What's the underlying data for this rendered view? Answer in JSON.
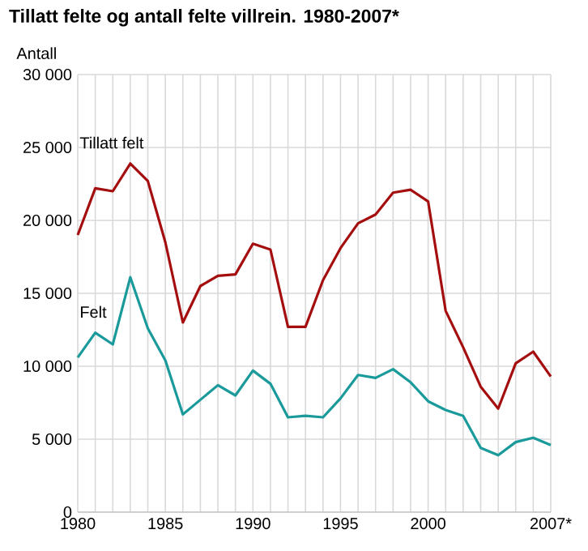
{
  "chart_data": {
    "type": "line",
    "title": "Tillatt felte og antall felte villrein. 1980-2007*",
    "ylabel": "Antall",
    "x": [
      1980,
      1981,
      1982,
      1983,
      1984,
      1985,
      1986,
      1987,
      1988,
      1989,
      1990,
      1991,
      1992,
      1993,
      1994,
      1995,
      1996,
      1997,
      1998,
      1999,
      2000,
      2001,
      2002,
      2003,
      2004,
      2005,
      2006,
      2007
    ],
    "series": [
      {
        "name": "Tillatt felt",
        "color": "#a50e0e",
        "values": [
          19000,
          22200,
          22000,
          23900,
          22700,
          18500,
          13000,
          15500,
          16200,
          16300,
          18400,
          18000,
          12700,
          12700,
          15900,
          18100,
          19800,
          20400,
          21900,
          22100,
          21300,
          13800,
          11300,
          8600,
          7100,
          10200,
          11000,
          9300
        ]
      },
      {
        "name": "Felt",
        "color": "#1a9a9a",
        "values": [
          10600,
          12300,
          11500,
          16100,
          12600,
          10400,
          6700,
          7700,
          8700,
          8000,
          9700,
          8800,
          6500,
          6600,
          6500,
          7800,
          9400,
          9200,
          9800,
          8900,
          7600,
          7000,
          6600,
          4400,
          3900,
          4800,
          5100,
          4600
        ]
      }
    ],
    "xlim": [
      1980,
      2007
    ],
    "ylim": [
      0,
      30000
    ],
    "xticks": [
      1980,
      {
        "value": 1981,
        "label": null
      },
      {
        "value": 1982,
        "label": null
      },
      {
        "value": 1983,
        "label": null
      },
      {
        "value": 1984,
        "label": null
      },
      1985,
      {
        "value": 1986,
        "label": null
      },
      {
        "value": 1987,
        "label": null
      },
      {
        "value": 1988,
        "label": null
      },
      {
        "value": 1989,
        "label": null
      },
      1990,
      {
        "value": 1991,
        "label": null
      },
      {
        "value": 1992,
        "label": null
      },
      {
        "value": 1993,
        "label": null
      },
      {
        "value": 1994,
        "label": null
      },
      1995,
      {
        "value": 1996,
        "label": null
      },
      {
        "value": 1997,
        "label": null
      },
      {
        "value": 1998,
        "label": null
      },
      {
        "value": 1999,
        "label": null
      },
      2000,
      {
        "value": 2001,
        "label": null
      },
      {
        "value": 2002,
        "label": null
      },
      {
        "value": 2003,
        "label": null
      },
      {
        "value": 2004,
        "label": null
      },
      {
        "value": 2005,
        "label": null
      },
      {
        "value": 2006,
        "label": null
      },
      {
        "value": 2007,
        "label": "2007*"
      }
    ],
    "yticks": [
      {
        "value": 0,
        "label": "0"
      },
      {
        "value": 5000,
        "label": "5 000"
      },
      {
        "value": 10000,
        "label": "10 000"
      },
      {
        "value": 15000,
        "label": "15 000"
      },
      {
        "value": 20000,
        "label": "20 000"
      },
      {
        "value": 25000,
        "label": "25 000"
      },
      {
        "value": 30000,
        "label": "30 000"
      }
    ],
    "grid": true,
    "legend": false,
    "marker": "none",
    "line_style": "solid"
  }
}
